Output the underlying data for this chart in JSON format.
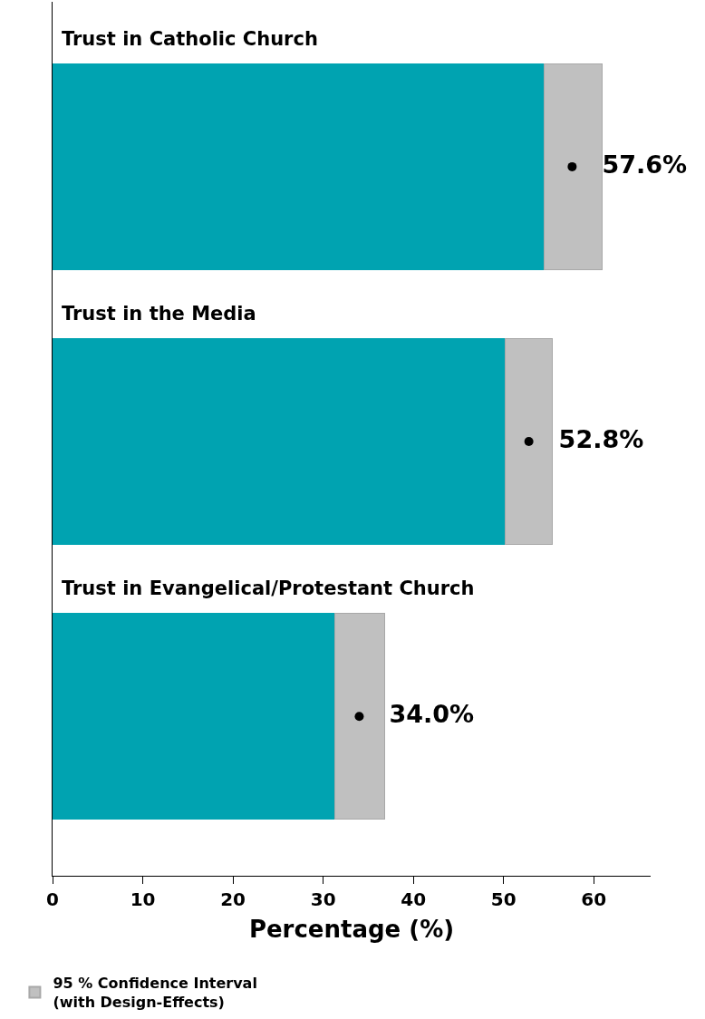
{
  "chart_data": {
    "type": "bar",
    "orientation": "horizontal",
    "stacked": true,
    "xlabel": "Percentage (%)",
    "categories": [
      "Trust in Catholic Church",
      "Trust in the Media",
      "Trust in Evangelical/Protestant Church"
    ],
    "series": [
      {
        "color": "#00a3b1",
        "values": [
          54.5,
          50.2,
          31.3
        ]
      },
      {
        "name": "95 % Confidence Interval\n(with Design-Effects)",
        "color": "#c0c0c0",
        "values": [
          6.4,
          5.2,
          5.5
        ]
      },
      {
        "type": "scatter",
        "color": "#000000",
        "marker": "circle",
        "values": [
          57.6,
          52.8,
          34.0
        ],
        "value_labels": [
          "57.6%",
          "52.8%",
          "34.0%"
        ]
      }
    ],
    "xlim": [
      0,
      66.3
    ],
    "xticks": [
      0,
      10,
      20,
      30,
      40,
      50,
      60
    ],
    "legend": "bottom left",
    "tick_labels": "x"
  }
}
